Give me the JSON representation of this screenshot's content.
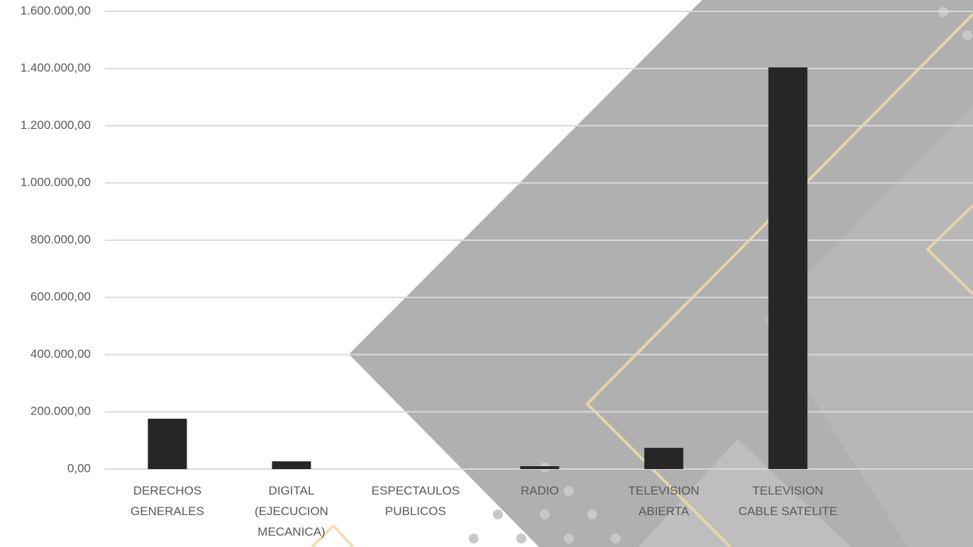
{
  "chart_data": {
    "type": "bar",
    "categories": [
      "DERECHOS GENERALES",
      "DIGITAL (EJECUCION MECANICA)",
      "ESPECTAULOS PUBLICOS",
      "RADIO",
      "TELEVISION ABIERTA",
      "TELEVISION CABLE SATELITE"
    ],
    "values": [
      176000,
      27000,
      0,
      10000,
      74000,
      1404000
    ],
    "color": "#262626",
    "ylim": [
      0,
      1600000
    ],
    "yticks": [
      {
        "value": 0,
        "label": "0,00"
      },
      {
        "value": 200000,
        "label": "200.000,00"
      },
      {
        "value": 400000,
        "label": "400.000,00"
      },
      {
        "value": 600000,
        "label": "600.000,00"
      },
      {
        "value": 800000,
        "label": "800.000,00"
      },
      {
        "value": 1000000,
        "label": "1.000.000,00"
      },
      {
        "value": 1200000,
        "label": "1.200.000,00"
      },
      {
        "value": 1400000,
        "label": "1.400.000,00"
      },
      {
        "value": 1600000,
        "label": "1.600.000,00"
      }
    ],
    "grid": true
  }
}
